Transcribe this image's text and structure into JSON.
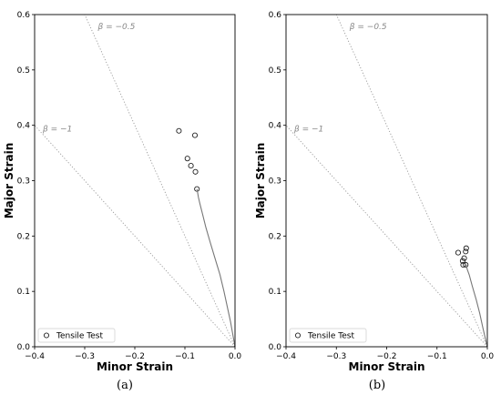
{
  "chart_data": [
    {
      "type": "scatter",
      "caption": "(a)",
      "xlabel": "Minor Strain",
      "ylabel": "Major Strain",
      "xlim": [
        -0.4,
        0.0
      ],
      "ylim": [
        0.0,
        0.6
      ],
      "xticks": [
        "−0.4",
        "−0.3",
        "−0.2",
        "−0.1",
        "0.0"
      ],
      "yticks": [
        "0.0",
        "0.1",
        "0.2",
        "0.3",
        "0.4",
        "0.5",
        "0.6"
      ],
      "xtick_values": [
        -0.4,
        -0.3,
        -0.2,
        -0.1,
        0.0
      ],
      "ytick_values": [
        0.0,
        0.1,
        0.2,
        0.3,
        0.4,
        0.5,
        0.6
      ],
      "grid": false,
      "legend_placement": "bottom-left",
      "reference_lines": [
        {
          "label": "β = −0.5",
          "beta": -0.5
        },
        {
          "label": "β = −1",
          "beta": -1
        }
      ],
      "series": [
        {
          "name": "Tensile Test",
          "marker": "open-circle",
          "x": [
            -0.112,
            -0.08,
            -0.095,
            -0.088,
            -0.079,
            -0.076
          ],
          "y": [
            0.39,
            0.382,
            0.34,
            0.327,
            0.316,
            0.285
          ]
        },
        {
          "marker": "line",
          "x": [
            0.0,
            -0.004,
            -0.009,
            -0.015,
            -0.022,
            -0.03,
            -0.04,
            -0.05,
            -0.058,
            -0.065,
            -0.07,
            -0.073,
            -0.075,
            -0.076
          ],
          "y": [
            0.0,
            0.02,
            0.045,
            0.07,
            0.1,
            0.13,
            0.16,
            0.19,
            0.215,
            0.24,
            0.258,
            0.27,
            0.28,
            0.285
          ]
        }
      ]
    },
    {
      "type": "scatter",
      "caption": "(b)",
      "xlabel": "Minor Strain",
      "ylabel": "Major Strain",
      "xlim": [
        -0.4,
        0.0
      ],
      "ylim": [
        0.0,
        0.6
      ],
      "xticks": [
        "−0.4",
        "−0.3",
        "−0.2",
        "−0.1",
        "0.0"
      ],
      "yticks": [
        "0.0",
        "0.1",
        "0.2",
        "0.3",
        "0.4",
        "0.5",
        "0.6"
      ],
      "xtick_values": [
        -0.4,
        -0.3,
        -0.2,
        -0.1,
        0.0
      ],
      "ytick_values": [
        0.0,
        0.1,
        0.2,
        0.3,
        0.4,
        0.5,
        0.6
      ],
      "grid": false,
      "legend_placement": "bottom-left",
      "reference_lines": [
        {
          "label": "β = −0.5",
          "beta": -0.5
        },
        {
          "label": "β = −1",
          "beta": -1
        }
      ],
      "series": [
        {
          "name": "Tensile Test",
          "marker": "open-circle",
          "x": [
            -0.042,
            -0.043,
            -0.058,
            -0.046,
            -0.049,
            -0.048,
            -0.043
          ],
          "y": [
            0.178,
            0.172,
            0.17,
            0.16,
            0.155,
            0.148,
            0.148
          ]
        },
        {
          "marker": "line",
          "x": [
            0.0,
            -0.004,
            -0.009,
            -0.015,
            -0.022,
            -0.03,
            -0.036,
            -0.04,
            -0.042
          ],
          "y": [
            0.0,
            0.015,
            0.035,
            0.06,
            0.085,
            0.11,
            0.13,
            0.14,
            0.148
          ]
        }
      ]
    }
  ]
}
